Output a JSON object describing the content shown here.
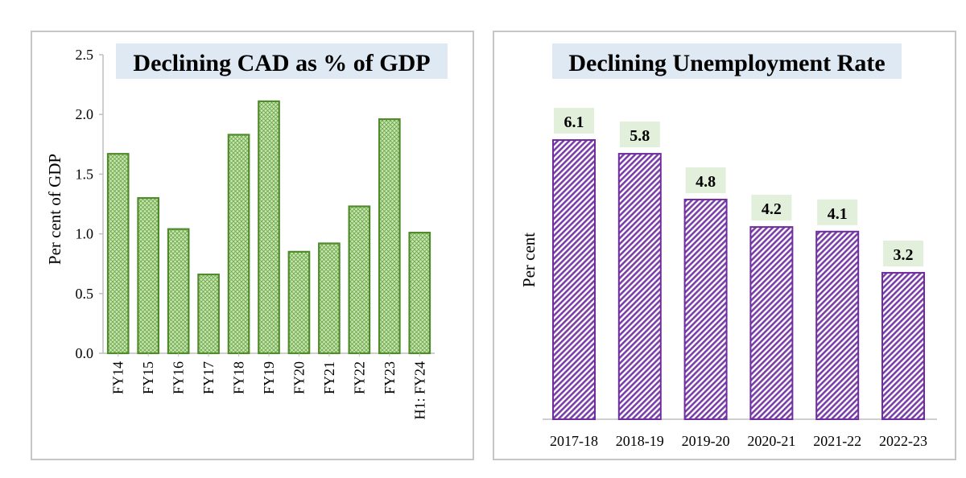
{
  "chart_data": [
    {
      "type": "bar",
      "title": "Declining CAD as % of GDP",
      "xlabel": "",
      "ylabel": "Per cent of GDP",
      "categories": [
        "FY14",
        "FY15",
        "FY16",
        "FY17",
        "FY18",
        "FY19",
        "FY20",
        "FY21",
        "FY22",
        "FY23",
        "H1: FY24"
      ],
      "values": [
        1.67,
        1.3,
        1.04,
        0.66,
        1.83,
        2.11,
        0.85,
        0.92,
        1.23,
        1.96,
        1.01
      ],
      "ylim": [
        0,
        2.5
      ],
      "yticks": [
        "0.0",
        "0.5",
        "1.0",
        "1.5",
        "2.0",
        "2.5"
      ],
      "grid": false,
      "colors": {
        "bar_fill": "#b9dca3",
        "bar_stroke": "#4f8a2b",
        "title_bg": "#dfe9f3"
      }
    },
    {
      "type": "bar",
      "title": "Declining Unemployment Rate",
      "xlabel": "",
      "ylabel": "Per cent",
      "categories": [
        "2017-18",
        "2018-19",
        "2019-20",
        "2020-21",
        "2021-22",
        "2022-23"
      ],
      "values": [
        6.1,
        5.8,
        4.8,
        4.2,
        4.1,
        3.2
      ],
      "data_labels": [
        "6.1",
        "5.8",
        "4.8",
        "4.2",
        "4.1",
        "3.2"
      ],
      "ylim": [
        0,
        6.1
      ],
      "grid": false,
      "colors": {
        "bar_fill": "#7a3fa8",
        "bar_stroke": "#6f2da0",
        "title_bg": "#dfe9f3",
        "label_bg": "#e2efda"
      }
    }
  ]
}
